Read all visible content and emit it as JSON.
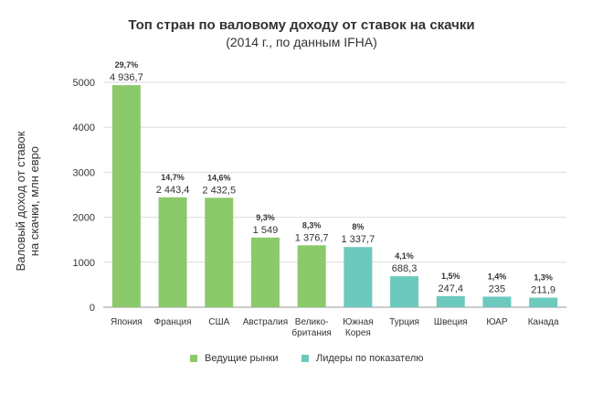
{
  "chart_data": {
    "type": "bar",
    "title": "Топ стран по валовому доходу от ставок на скачки",
    "subtitle": "(2014 г., по данным IFHA)",
    "ylabel": "Валовый доход от ставок на скачки, млн евро",
    "ylabel_lines": [
      "Валовый доход от ставок",
      "на скачки, млн евро"
    ],
    "ylim": [
      0,
      5000
    ],
    "yticks": [
      0,
      1000,
      2000,
      3000,
      4000,
      5000
    ],
    "grid": true,
    "legend_position": "bottom",
    "categories": [
      [
        "Япония"
      ],
      [
        "Франция"
      ],
      [
        "США"
      ],
      [
        "Австралия"
      ],
      [
        "Велико-",
        "британия"
      ],
      [
        "Южная",
        "Корея"
      ],
      [
        "Турция"
      ],
      [
        "Швеция"
      ],
      [
        "ЮАР"
      ],
      [
        "Канада"
      ]
    ],
    "values": [
      4936.7,
      2443.4,
      2432.5,
      1549,
      1376.7,
      1337.7,
      688.3,
      247.4,
      235,
      211.9
    ],
    "value_labels": [
      "4 936,7",
      "2 443,4",
      "2 432,5",
      "1 549",
      "1 376,7",
      "1 337,7",
      "688,3",
      "247,4",
      "235",
      "211,9"
    ],
    "share_labels": [
      "29,7%",
      "14,7%",
      "14,6%",
      "9,3%",
      "8,3%",
      "8%",
      "4,1%",
      "1,5%",
      "1,4%",
      "1,3%"
    ],
    "groups": [
      "leading",
      "leading",
      "leading",
      "leading",
      "leading",
      "leaders",
      "leaders",
      "leaders",
      "leaders",
      "leaders"
    ],
    "series": [
      {
        "key": "leading",
        "name": "Ведущие рынки",
        "color": "#8cc96b"
      },
      {
        "key": "leaders",
        "name": "Лидеры по показателю",
        "color": "#6cc9bd"
      }
    ],
    "gridline_color": "#dddddd",
    "axis_color": "#999999"
  }
}
